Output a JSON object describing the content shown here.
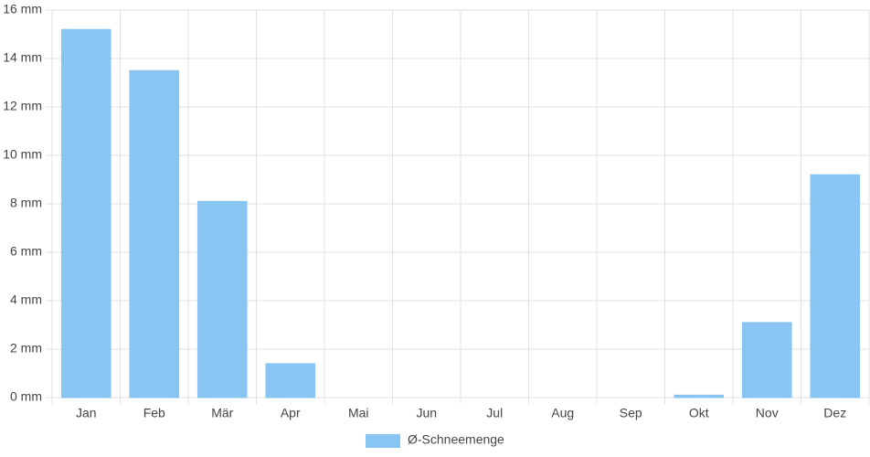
{
  "chart_data": {
    "type": "bar",
    "categories": [
      "Jan",
      "Feb",
      "Mär",
      "Apr",
      "Mai",
      "Jun",
      "Jul",
      "Aug",
      "Sep",
      "Okt",
      "Nov",
      "Dez"
    ],
    "series": [
      {
        "name": "Ø-Schneemenge",
        "color": "#88c5f2",
        "values": [
          15.2,
          13.5,
          8.1,
          1.4,
          0,
          0,
          0,
          0,
          0,
          0.1,
          3.1,
          9.2
        ]
      }
    ],
    "ylim": [
      0,
      16
    ],
    "yticks": [
      {
        "value": 0,
        "label": "0 mm"
      },
      {
        "value": 2,
        "label": "2 mm"
      },
      {
        "value": 4,
        "label": "4 mm"
      },
      {
        "value": 6,
        "label": "6 mm"
      },
      {
        "value": 8,
        "label": "8 mm"
      },
      {
        "value": 10,
        "label": "10 mm"
      },
      {
        "value": 12,
        "label": "12 mm"
      },
      {
        "value": 14,
        "label": "14 mm"
      },
      {
        "value": 16,
        "label": "16 mm"
      }
    ],
    "grid": true,
    "legend": "bottom"
  }
}
